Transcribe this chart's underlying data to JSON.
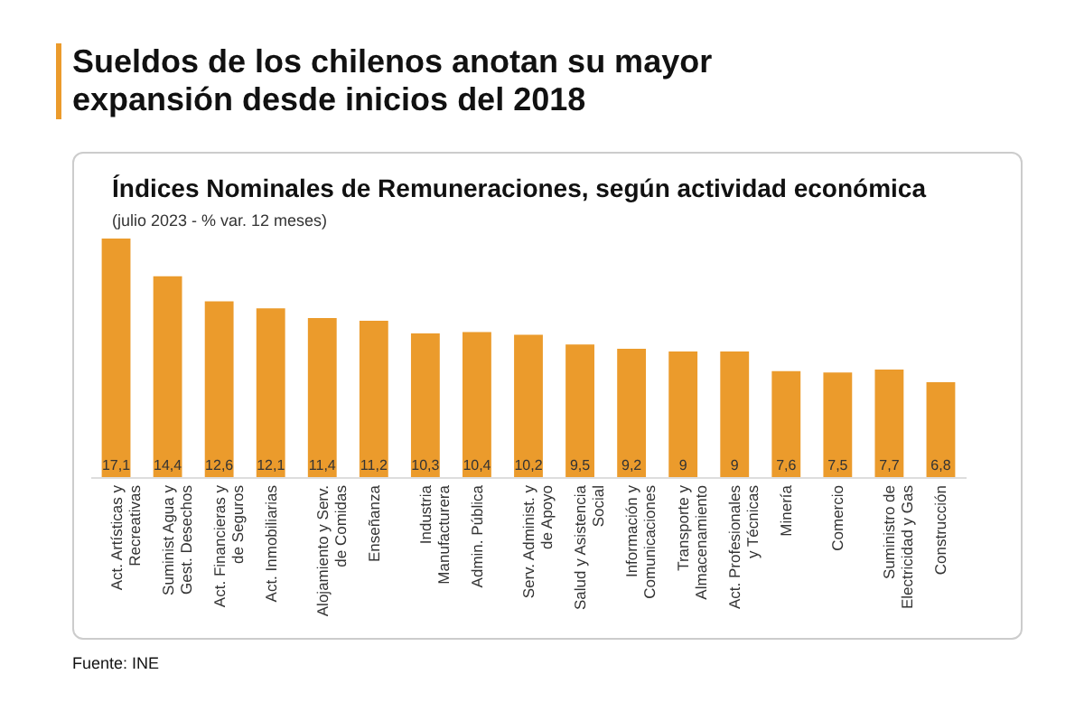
{
  "chart_data": {
    "type": "bar",
    "title": "Sueldos de los chilenos anotan su mayor expansión desde inicios del 2018",
    "subtitle": "Índices Nominales de Remuneraciones, según actividad económica",
    "annotations": [
      "(julio 2023 - % var. 12 meses)",
      "Fuente: INE"
    ],
    "categories": [
      "Act. Artísticas y Recreativas",
      "Suminist Agua y Gest. Desechos",
      "Act. Financieras y de Seguros",
      "Act. Inmobiliarias",
      "Alojamiento y Serv. de Comidas",
      "Enseñanza",
      "Industria Manufacturera",
      "Admin. Pública",
      "Serv. Administ. y de Apoyo",
      "Salud y Asistencia Social",
      "Información y Comunicaciones",
      "Transporte y Almacenamiento",
      "Act. Profesionales y Técnicas",
      "Minería",
      "Comercio",
      "Suministro de Electricidad y Gas",
      "Construcción"
    ],
    "values": [
      17.1,
      14.4,
      12.6,
      12.1,
      11.4,
      11.2,
      10.3,
      10.4,
      10.2,
      9.5,
      9.2,
      9,
      9,
      7.6,
      7.5,
      7.7,
      6.8
    ],
    "value_labels": [
      "17,1",
      "14,4",
      "12,6",
      "12,1",
      "11,4",
      "11,2",
      "10,3",
      "10,4",
      "10,2",
      "9,5",
      "9,2",
      "9",
      "9",
      "7,6",
      "7,5",
      "7,7",
      "6,8"
    ],
    "color": "#eb9b2c"
  }
}
